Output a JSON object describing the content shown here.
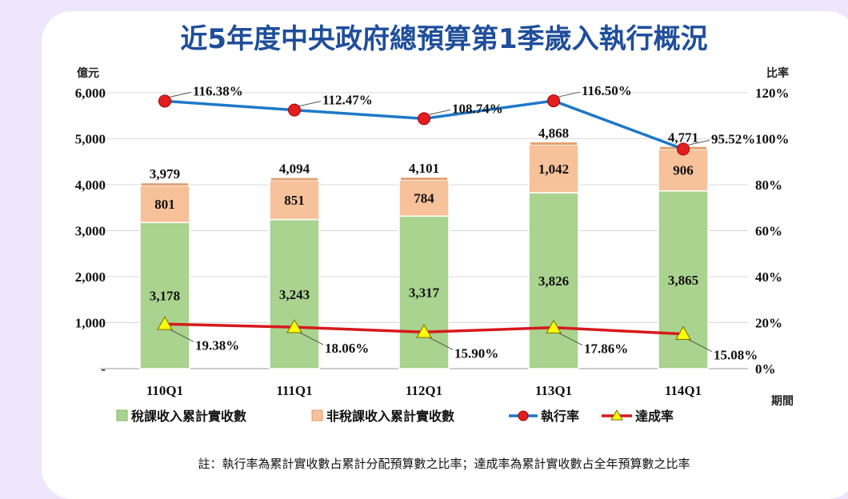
{
  "chart_data": {
    "type": "bar",
    "title": "近5年度中央政府總預算第1季歲入執行概況",
    "left_axis_unit": "億元",
    "right_axis_unit": "比率",
    "xlabel": "期間",
    "categories": [
      "110Q1",
      "111Q1",
      "112Q1",
      "113Q1",
      "114Q1"
    ],
    "ylim": [
      0,
      6000
    ],
    "y_ticks": [
      "-",
      "1,000",
      "2,000",
      "3,000",
      "4,000",
      "5,000",
      "6,000"
    ],
    "y2lim": [
      0,
      120
    ],
    "y2_ticks": [
      "0%",
      "20%",
      "40%",
      "60%",
      "80%",
      "100%",
      "120%"
    ],
    "stacked": true,
    "series": [
      {
        "name": "稅課收入累計實收數",
        "type": "bar",
        "color": "#a9d38e",
        "values": [
          3178,
          3243,
          3317,
          3826,
          3865
        ],
        "labels": [
          "3,178",
          "3,243",
          "3,317",
          "3,826",
          "3,865"
        ]
      },
      {
        "name": "非稅課收入累計實收數",
        "type": "bar",
        "color": "#f7c19a",
        "values": [
          801,
          851,
          784,
          1042,
          906
        ],
        "labels": [
          "801",
          "851",
          "784",
          "1,042",
          "906"
        ]
      },
      {
        "name": "執行率",
        "type": "line",
        "axis": "right",
        "color": "#1f78c8",
        "marker_color": "#e31e1e",
        "values": [
          116.38,
          112.47,
          108.74,
          116.5,
          95.52
        ],
        "labels": [
          "116.38%",
          "112.47%",
          "108.74%",
          "116.50%",
          "95.52%"
        ]
      },
      {
        "name": "達成率",
        "type": "line",
        "axis": "right",
        "color": "#d7191c",
        "marker_color": "#ffff00",
        "values": [
          19.38,
          18.06,
          15.9,
          17.86,
          15.08
        ],
        "labels": [
          "19.38%",
          "18.06%",
          "15.90%",
          "17.86%",
          "15.08%"
        ]
      }
    ],
    "totals": [
      3979,
      4094,
      4101,
      4868,
      4771
    ],
    "total_labels": [
      "3,979",
      "4,094",
      "4,101",
      "4,868",
      "4,771"
    ],
    "grid": true,
    "legend_position": "bottom",
    "note": "註：執行率為累計實收數占累計分配預算數之比率；達成率為累計實收數占全年預算數之比率"
  }
}
